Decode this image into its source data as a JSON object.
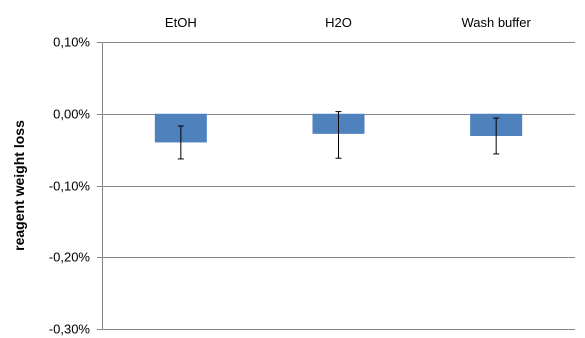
{
  "chart_data": {
    "type": "bar",
    "categories": [
      "EtOH",
      "H2O",
      "Wash buffer"
    ],
    "values": [
      -0.04,
      -0.028,
      -0.031
    ],
    "error_bars": [
      {
        "low": -0.063,
        "high": -0.017
      },
      {
        "low": -0.062,
        "high": 0.003
      },
      {
        "low": -0.056,
        "high": -0.006
      }
    ],
    "ylabel": "reagent weight loss",
    "xlabel": "",
    "ylim": [
      -0.3,
      0.1
    ],
    "yticks": [
      0.1,
      0.0,
      -0.1,
      -0.2,
      -0.3
    ],
    "ytick_labels": [
      "0,10%",
      "0,00%",
      "-0,10%",
      "-0,20%",
      "-0,30%"
    ],
    "grid": true,
    "bar_color": "#4f81bd",
    "category_labels_position": "top"
  }
}
